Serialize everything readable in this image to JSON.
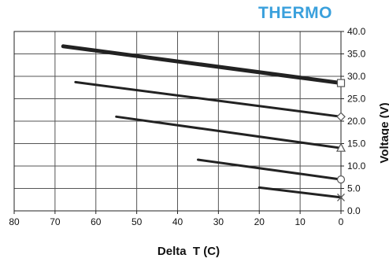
{
  "brand": {
    "text": "THERMO",
    "color": "#3aa0dc"
  },
  "chart_data": {
    "type": "line",
    "title": "",
    "xlabel": "Delta  T (C)",
    "ylabel": "Voltage (V)",
    "xlim": [
      80,
      0
    ],
    "ylim": [
      0,
      40
    ],
    "x_reversed": true,
    "y_axis_side": "right",
    "grid": true,
    "legend": "none",
    "xticks": [
      "80",
      "70",
      "60",
      "50",
      "40",
      "30",
      "20",
      "10",
      "0"
    ],
    "yticks": [
      "0.0",
      "5.0",
      "10.0",
      "15.0",
      "20.0",
      "25.0",
      "30.0",
      "35.0",
      "40.0"
    ],
    "series": [
      {
        "marker": "square",
        "thick": true,
        "x": [
          68,
          0
        ],
        "y": [
          36.7,
          28.5
        ]
      },
      {
        "marker": "diamond",
        "x": [
          65,
          0
        ],
        "y": [
          28.7,
          21.0
        ]
      },
      {
        "marker": "triangle",
        "x": [
          55,
          0
        ],
        "y": [
          21.0,
          14.0
        ]
      },
      {
        "marker": "circle",
        "x": [
          35,
          0
        ],
        "y": [
          11.4,
          7.0
        ]
      },
      {
        "marker": "x",
        "x": [
          20,
          0
        ],
        "y": [
          5.2,
          3.0
        ]
      }
    ]
  }
}
